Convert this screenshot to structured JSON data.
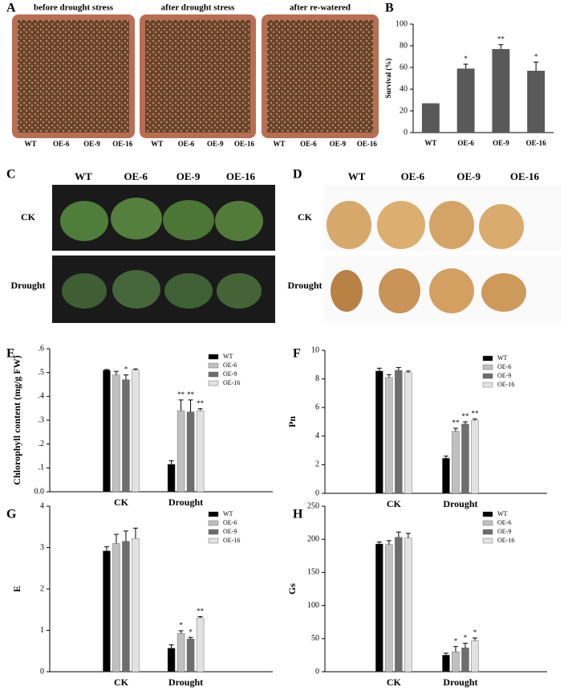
{
  "photos": {
    "A": {
      "label": "A",
      "images": [
        {
          "title": "before drought stress",
          "lines": [
            "WT",
            "OE-6",
            "OE-9",
            "OE-16"
          ]
        },
        {
          "title": "after drought stress",
          "lines": [
            "WT",
            "OE-6",
            "OE-9",
            "OE-16"
          ]
        },
        {
          "title": "after re-watered",
          "lines": [
            "WT",
            "OE-6",
            "OE-9",
            "OE-16"
          ]
        }
      ]
    },
    "C": {
      "label": "C",
      "columns": [
        "WT",
        "OE-6",
        "OE-9",
        "OE-16"
      ],
      "rows": [
        "CK",
        "Drought"
      ]
    },
    "D": {
      "label": "D",
      "columns": [
        "WT",
        "OE-6",
        "OE-9",
        "OE-16"
      ],
      "rows": [
        "CK",
        "Drought"
      ]
    }
  },
  "chart_data": [
    {
      "type": "bar",
      "panel_label": "B",
      "ylabel": "Survival (%)",
      "categories": [
        "WT",
        "OE-6",
        "OE-9",
        "OE-16"
      ],
      "values": [
        27,
        59,
        77,
        57
      ],
      "errors": [
        null,
        4,
        4,
        8
      ],
      "sig": [
        null,
        "*",
        "**",
        "*"
      ],
      "color": "#595959",
      "ylim": [
        0,
        100
      ],
      "yticks": [
        0,
        20,
        40,
        60,
        80,
        100
      ]
    },
    {
      "type": "grouped_bar",
      "panel_label": "E",
      "ylabel": "Chlorophyll content (mg/g FW)",
      "categories": [
        "CK",
        "Drought"
      ],
      "series": [
        {
          "name": "WT",
          "color": "#000000",
          "values": [
            0.51,
            0.115
          ],
          "errors": [
            0.003,
            0.015
          ],
          "sig": [
            null,
            null
          ]
        },
        {
          "name": "OE-6",
          "color": "#c0c0c0",
          "values": [
            0.49,
            0.34
          ],
          "errors": [
            0.015,
            0.045
          ],
          "sig": [
            null,
            "**"
          ]
        },
        {
          "name": "OE-9",
          "color": "#6e6e6e",
          "values": [
            0.47,
            0.335
          ],
          "errors": [
            0.02,
            0.05
          ],
          "sig": [
            "*",
            "**"
          ]
        },
        {
          "name": "OE-16",
          "color": "#e2e2e2",
          "values": [
            0.51,
            0.34
          ],
          "errors": [
            0.005,
            0.008
          ],
          "sig": [
            null,
            "**"
          ]
        }
      ],
      "ylim": [
        0,
        0.6
      ],
      "yticks": [
        {
          "value": 0,
          "label": "0.0"
        },
        {
          "value": 0.1,
          "label": ".1"
        },
        {
          "value": 0.2,
          "label": ".2"
        },
        {
          "value": 0.3,
          "label": ".3"
        },
        {
          "value": 0.4,
          "label": ".4"
        },
        {
          "value": 0.5,
          "label": ".5"
        },
        {
          "value": 0.6,
          "label": ".6"
        }
      ],
      "legend": "upper right"
    },
    {
      "type": "grouped_bar",
      "panel_label": "F",
      "ylabel": "Pn",
      "categories": [
        "CK",
        "Drought"
      ],
      "series": [
        {
          "name": "WT",
          "color": "#000000",
          "values": [
            8.55,
            2.45
          ],
          "errors": [
            0.2,
            0.15
          ],
          "sig": [
            null,
            null
          ]
        },
        {
          "name": "OE-6",
          "color": "#c0c0c0",
          "values": [
            8.1,
            4.35
          ],
          "errors": [
            0.2,
            0.2
          ],
          "sig": [
            null,
            "**"
          ]
        },
        {
          "name": "OE-9",
          "color": "#6e6e6e",
          "values": [
            8.6,
            4.85
          ],
          "errors": [
            0.2,
            0.15
          ],
          "sig": [
            null,
            "**"
          ]
        },
        {
          "name": "OE-16",
          "color": "#e2e2e2",
          "values": [
            8.45,
            5.1
          ],
          "errors": [
            0.1,
            0.1
          ],
          "sig": [
            null,
            "**"
          ]
        }
      ],
      "ylim": [
        0,
        10
      ],
      "yticks": [
        0,
        2,
        4,
        6,
        8,
        10
      ],
      "legend": "upper right"
    },
    {
      "type": "grouped_bar",
      "panel_label": "G",
      "ylabel": "E",
      "categories": [
        "CK",
        "Drought"
      ],
      "series": [
        {
          "name": "WT",
          "color": "#000000",
          "values": [
            2.92,
            0.57
          ],
          "errors": [
            0.1,
            0.08
          ],
          "sig": [
            null,
            null
          ]
        },
        {
          "name": "OE-6",
          "color": "#c0c0c0",
          "values": [
            3.1,
            0.93
          ],
          "errors": [
            0.22,
            0.06
          ],
          "sig": [
            null,
            "*"
          ]
        },
        {
          "name": "OE-9",
          "color": "#6e6e6e",
          "values": [
            3.15,
            0.79
          ],
          "errors": [
            0.25,
            0.04
          ],
          "sig": [
            null,
            "*"
          ]
        },
        {
          "name": "OE-16",
          "color": "#e2e2e2",
          "values": [
            3.22,
            1.3
          ],
          "errors": [
            0.25,
            0.03
          ],
          "sig": [
            null,
            "**"
          ]
        }
      ],
      "ylim": [
        0,
        4
      ],
      "yticks": [
        0,
        1,
        2,
        3,
        4
      ],
      "legend": "upper right"
    },
    {
      "type": "grouped_bar",
      "panel_label": "H",
      "ylabel": "Gs",
      "categories": [
        "CK",
        "Drought"
      ],
      "series": [
        {
          "name": "WT",
          "color": "#000000",
          "values": [
            193,
            25
          ],
          "errors": [
            3,
            3
          ],
          "sig": [
            null,
            null
          ]
        },
        {
          "name": "OE-6",
          "color": "#c0c0c0",
          "values": [
            192,
            30
          ],
          "errors": [
            6,
            8
          ],
          "sig": [
            null,
            "*"
          ]
        },
        {
          "name": "OE-9",
          "color": "#6e6e6e",
          "values": [
            203,
            36
          ],
          "errors": [
            8,
            7
          ],
          "sig": [
            null,
            "*"
          ]
        },
        {
          "name": "OE-16",
          "color": "#e2e2e2",
          "values": [
            202,
            47
          ],
          "errors": [
            7,
            4
          ],
          "sig": [
            null,
            "*"
          ]
        }
      ],
      "ylim": [
        0,
        250
      ],
      "yticks": [
        0,
        50,
        100,
        150,
        200,
        250
      ],
      "legend": "upper right"
    }
  ]
}
